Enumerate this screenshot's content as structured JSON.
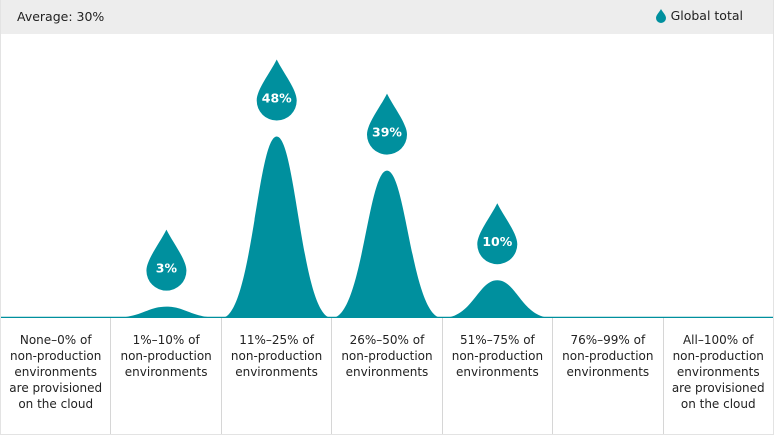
{
  "header": {
    "average_label": "Average: 30%",
    "legend_label": "Global total",
    "legend_icon": "drop-icon"
  },
  "colors": {
    "teal": "#00909e",
    "header_bg": "#ededed",
    "divider": "#d6d6d6"
  },
  "chart_data": {
    "type": "area",
    "categories": [
      "None–0% of non-production environments are provisioned on the cloud",
      "1%–10% of non-production environments",
      "11%–25% of non-production environments",
      "26%–50% of non-production environments",
      "51%–75% of non-production environments",
      "76%–99% of non-production environments",
      "All–100% of non-production environments are provisioned on the cloud"
    ],
    "category_lines": [
      [
        "None–0% of",
        "non-production",
        "environments",
        "are provisioned",
        "on the cloud"
      ],
      [
        "1%–10% of",
        "non-production",
        "environments"
      ],
      [
        "11%–25% of",
        "non-production",
        "environments"
      ],
      [
        "26%–50% of",
        "non-production",
        "environments"
      ],
      [
        "51%–75% of",
        "non-production",
        "environments"
      ],
      [
        "76%–99% of",
        "non-production",
        "environments"
      ],
      [
        "All–100% of",
        "non-production",
        "environments",
        "are provisioned",
        "on the cloud"
      ]
    ],
    "series": [
      {
        "name": "Global total",
        "values": [
          0,
          3,
          48,
          39,
          10,
          0,
          0
        ],
        "labels": [
          "",
          "3%",
          "48%",
          "39%",
          "10%",
          "",
          ""
        ]
      }
    ],
    "ylim": [
      0,
      50
    ],
    "annotation": "Average: 30%",
    "legend": "top-right",
    "grid": false
  }
}
